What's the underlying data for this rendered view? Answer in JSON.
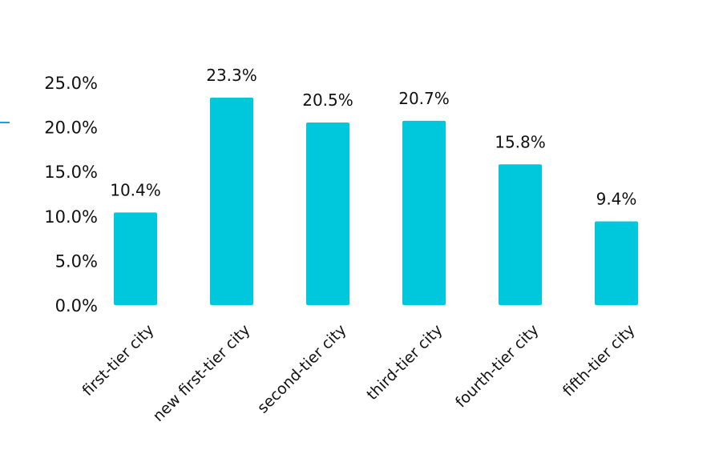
{
  "chart_data": {
    "type": "bar",
    "categories": [
      "first-tier city",
      "new first-tier city",
      "second-tier city",
      "third-tier city",
      "fourth-tier city",
      "fifth-tier city"
    ],
    "values": [
      10.4,
      23.3,
      20.5,
      20.7,
      15.8,
      9.4
    ],
    "data_labels": [
      "10.4%",
      "23.3%",
      "20.5%",
      "20.7%",
      "15.8%",
      "9.4%"
    ],
    "y_ticks": [
      "0.0%",
      "5.0%",
      "10.0%",
      "15.0%",
      "20.0%",
      "25.0%"
    ],
    "ylim": [
      0,
      25
    ],
    "grid": false,
    "bar_color": "#00c8dc",
    "title": "",
    "xlabel": "",
    "ylabel": ""
  }
}
